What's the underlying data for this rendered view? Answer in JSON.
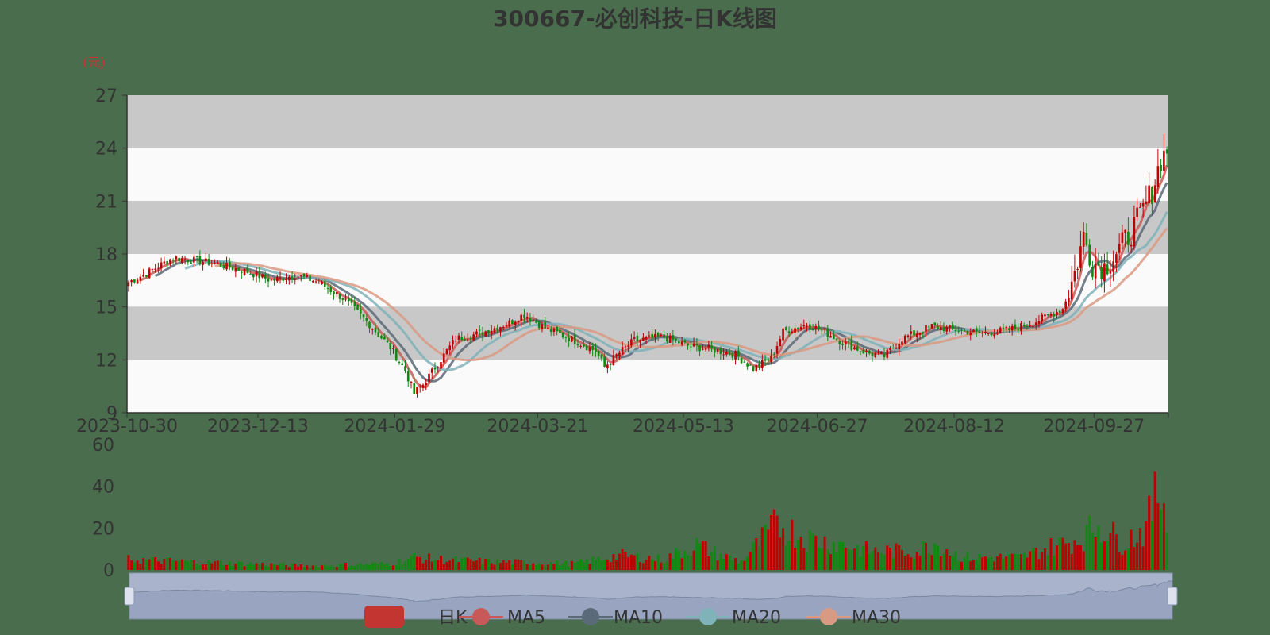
{
  "chart_data": {
    "type": "candlestick",
    "title": "300667-必创科技-日K线图",
    "y_unit": "(元)",
    "price_axis": {
      "ylim": [
        9,
        27
      ],
      "ticks": [
        "27",
        "24",
        "21",
        "18",
        "15",
        "12",
        "9"
      ]
    },
    "x_ticks": [
      "2023-10-30",
      "2023-12-13",
      "2024-01-29",
      "2024-03-21",
      "2024-05-13",
      "2024-06-27",
      "2024-08-12",
      "2024-09-27"
    ],
    "volume_axis": {
      "ylim": [
        0,
        60
      ],
      "ticks": [
        "60",
        "40",
        "20",
        "0"
      ]
    },
    "legend": [
      {
        "name": "日K",
        "color": "#c23531"
      },
      {
        "name": "MA5",
        "color": "#c75a58"
      },
      {
        "name": "MA10",
        "color": "#5a6a78"
      },
      {
        "name": "MA20",
        "color": "#7fb2b9"
      },
      {
        "name": "MA30",
        "color": "#d99a83"
      }
    ],
    "colors": {
      "up": "#c00000",
      "down": "#118811",
      "band": "#c8c8c8",
      "band_alt": "#fafafa"
    },
    "price_anchors": [
      [
        0,
        16.4
      ],
      [
        6,
        16.9
      ],
      [
        15,
        17.8
      ],
      [
        28,
        17.5
      ],
      [
        40,
        17.0
      ],
      [
        48,
        16.5
      ],
      [
        56,
        16.8
      ],
      [
        64,
        16.4
      ],
      [
        72,
        15.5
      ],
      [
        80,
        14.2
      ],
      [
        88,
        12.7
      ],
      [
        93,
        11.4
      ],
      [
        96,
        10.1
      ],
      [
        99,
        10.6
      ],
      [
        104,
        11.8
      ],
      [
        110,
        13.2
      ],
      [
        118,
        13.5
      ],
      [
        128,
        14.1
      ],
      [
        133,
        14.6
      ],
      [
        140,
        13.8
      ],
      [
        150,
        13.1
      ],
      [
        157,
        12.5
      ],
      [
        160,
        11.6
      ],
      [
        165,
        12.4
      ],
      [
        170,
        13.1
      ],
      [
        180,
        13.3
      ],
      [
        188,
        12.8
      ],
      [
        196,
        12.6
      ],
      [
        204,
        12.3
      ],
      [
        210,
        11.5
      ],
      [
        216,
        12.1
      ],
      [
        220,
        13.6
      ],
      [
        228,
        14.0
      ],
      [
        234,
        13.6
      ],
      [
        240,
        13.0
      ],
      [
        248,
        12.4
      ],
      [
        254,
        12.2
      ],
      [
        260,
        13.2
      ],
      [
        270,
        13.9
      ],
      [
        278,
        13.7
      ],
      [
        286,
        13.5
      ],
      [
        296,
        13.7
      ],
      [
        304,
        14.1
      ],
      [
        314,
        14.9
      ],
      [
        318,
        16.9
      ],
      [
        321,
        19.0
      ],
      [
        324,
        17.5
      ],
      [
        328,
        17.3
      ],
      [
        334,
        18.5
      ],
      [
        340,
        20.1
      ],
      [
        344,
        21.6
      ],
      [
        347,
        23.4
      ],
      [
        349,
        23.9
      ]
    ],
    "volume_anchors": [
      [
        0,
        5
      ],
      [
        30,
        3.5
      ],
      [
        60,
        2
      ],
      [
        88,
        3
      ],
      [
        96,
        6
      ],
      [
        104,
        5
      ],
      [
        120,
        4
      ],
      [
        150,
        3
      ],
      [
        165,
        7
      ],
      [
        180,
        5
      ],
      [
        191,
        12
      ],
      [
        199,
        7
      ],
      [
        206,
        4
      ],
      [
        218,
        22
      ],
      [
        228,
        15
      ],
      [
        240,
        12
      ],
      [
        250,
        9
      ],
      [
        265,
        9
      ],
      [
        271,
        13
      ],
      [
        280,
        6
      ],
      [
        300,
        6
      ],
      [
        310,
        11
      ],
      [
        320,
        15
      ],
      [
        326,
        22
      ],
      [
        334,
        13
      ],
      [
        342,
        20
      ],
      [
        346,
        38
      ],
      [
        349,
        32
      ]
    ],
    "n_days": 350
  }
}
